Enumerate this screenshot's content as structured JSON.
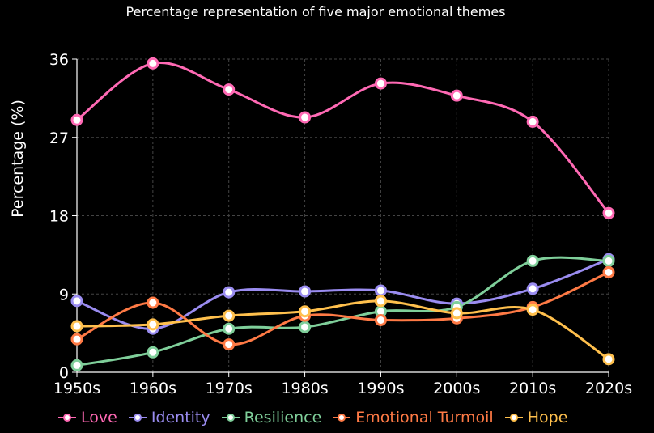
{
  "chart_data": {
    "type": "line",
    "title": "Percentage representation of five major emotional themes",
    "xlabel": "",
    "ylabel": "Percentage (%)",
    "categories": [
      "1950s",
      "1960s",
      "1970s",
      "1980s",
      "1990s",
      "2000s",
      "2010s",
      "2020s"
    ],
    "yticks": [
      "0",
      "9",
      "18",
      "27",
      "36"
    ],
    "ylim": [
      0,
      36
    ],
    "grid": true,
    "legend_position": "bottom",
    "series": [
      {
        "name": "Love",
        "color": "#ff69b4",
        "values": [
          29.0,
          35.5,
          32.5,
          29.3,
          33.2,
          31.8,
          28.8,
          18.3
        ]
      },
      {
        "name": "Identity",
        "color": "#9a8cf0",
        "values": [
          8.2,
          5.0,
          9.2,
          9.3,
          9.4,
          7.9,
          9.6,
          13.0
        ]
      },
      {
        "name": "Resilience",
        "color": "#7fcf9a",
        "values": [
          0.8,
          2.3,
          5.0,
          5.2,
          7.0,
          7.5,
          12.8,
          12.8
        ]
      },
      {
        "name": "Emotional Turmoil",
        "color": "#ff7a45",
        "values": [
          3.8,
          8.0,
          3.2,
          6.5,
          6.0,
          6.2,
          7.5,
          11.5
        ]
      },
      {
        "name": "Hope",
        "color": "#ffc04d",
        "values": [
          5.3,
          5.5,
          6.5,
          7.0,
          8.2,
          6.8,
          7.2,
          1.5
        ]
      }
    ]
  }
}
